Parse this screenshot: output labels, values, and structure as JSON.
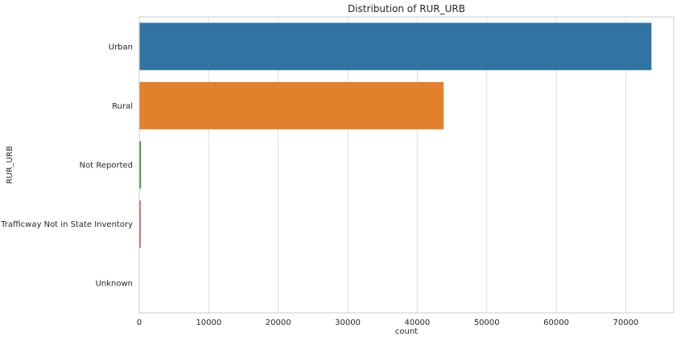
{
  "chart_data": {
    "type": "bar",
    "orientation": "horizontal",
    "title": "Distribution of RUR_URB",
    "xlabel": "count",
    "ylabel": "RUR_URB",
    "categories": [
      "Urban",
      "Rural",
      "Not Reported",
      "Trafficway Not in State Inventory",
      "Unknown"
    ],
    "values": [
      73700,
      43800,
      250,
      200,
      30
    ],
    "colors": [
      "#3274a1",
      "#e1812c",
      "#3a923a",
      "#c03d3e",
      "#9372b2"
    ],
    "xlim": [
      0,
      76900
    ],
    "xticks": [
      0,
      10000,
      20000,
      30000,
      40000,
      50000,
      60000,
      70000
    ],
    "xtick_labels": [
      "0",
      "10000",
      "20000",
      "30000",
      "40000",
      "50000",
      "60000",
      "70000"
    ],
    "grid": true,
    "style": "seaborn-whitegrid"
  }
}
